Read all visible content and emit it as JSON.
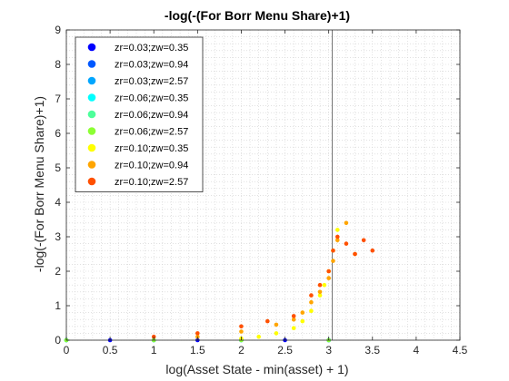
{
  "chart_data": {
    "type": "scatter",
    "title": "-log(-(For Borr Menu Share)+1)",
    "xlabel": "log(Asset State - min(asset) + 1)",
    "ylabel": "-log(-(For Borr Menu Share)+1)",
    "xlim": [
      0,
      4.5
    ],
    "ylim": [
      0,
      9
    ],
    "xticks": [
      "0",
      "0.5",
      "1",
      "1.5",
      "2",
      "2.5",
      "3",
      "3.5",
      "4",
      "4.5"
    ],
    "yticks": [
      "0",
      "1",
      "2",
      "3",
      "4",
      "5",
      "6",
      "7",
      "8",
      "9"
    ],
    "grid": "minor-dotted",
    "legend_location": "top-left",
    "reference_line_x": 3.04,
    "series": [
      {
        "name": "zr=0.03;zw=0.35",
        "color": "#0000ff",
        "points": [
          [
            0,
            0
          ],
          [
            0.5,
            0
          ],
          [
            1,
            0
          ],
          [
            1.5,
            0
          ],
          [
            2,
            0
          ],
          [
            2.5,
            0
          ],
          [
            3,
            0
          ]
        ]
      },
      {
        "name": "zr=0.03;zw=0.94",
        "color": "#0058ff",
        "points": [
          [
            0,
            0
          ],
          [
            1,
            0
          ],
          [
            2,
            0
          ],
          [
            3,
            0
          ]
        ]
      },
      {
        "name": "zr=0.03;zw=2.57",
        "color": "#00a6ff",
        "points": [
          [
            0,
            0
          ],
          [
            1,
            0
          ],
          [
            2,
            0
          ],
          [
            3,
            0
          ]
        ]
      },
      {
        "name": "zr=0.06;zw=0.35",
        "color": "#00ffff",
        "points": [
          [
            0,
            0
          ],
          [
            1,
            0
          ],
          [
            2,
            0
          ],
          [
            3,
            0
          ]
        ]
      },
      {
        "name": "zr=0.06;zw=0.94",
        "color": "#4dff9a",
        "points": [
          [
            0,
            0
          ],
          [
            1,
            0
          ],
          [
            2,
            0
          ],
          [
            3,
            0
          ]
        ]
      },
      {
        "name": "zr=0.06;zw=2.57",
        "color": "#8cff33",
        "points": [
          [
            0,
            0
          ],
          [
            1,
            0
          ],
          [
            2,
            0
          ],
          [
            3,
            0
          ]
        ]
      },
      {
        "name": "zr=0.10;zw=0.35",
        "color": "#ffff00",
        "points": [
          [
            2.0,
            0.05
          ],
          [
            2.2,
            0.1
          ],
          [
            2.4,
            0.2
          ],
          [
            2.6,
            0.35
          ],
          [
            2.7,
            0.55
          ],
          [
            2.8,
            0.85
          ],
          [
            2.9,
            1.3
          ],
          [
            2.95,
            1.6
          ],
          [
            3.0,
            2.0
          ],
          [
            3.05,
            2.6
          ],
          [
            3.1,
            3.2
          ]
        ]
      },
      {
        "name": "zr=0.10;zw=0.94",
        "color": "#ffa500",
        "points": [
          [
            1.5,
            0.1
          ],
          [
            2.0,
            0.25
          ],
          [
            2.4,
            0.45
          ],
          [
            2.6,
            0.6
          ],
          [
            2.7,
            0.8
          ],
          [
            2.8,
            1.1
          ],
          [
            2.9,
            1.4
          ],
          [
            3.0,
            1.8
          ],
          [
            3.05,
            2.3
          ],
          [
            3.1,
            2.9
          ],
          [
            3.2,
            3.4
          ],
          [
            3.3,
            2.5
          ]
        ]
      },
      {
        "name": "zr=0.10;zw=2.57",
        "color": "#ff5000",
        "points": [
          [
            1.0,
            0.1
          ],
          [
            1.5,
            0.2
          ],
          [
            2.0,
            0.4
          ],
          [
            2.3,
            0.55
          ],
          [
            2.6,
            0.7
          ],
          [
            2.8,
            1.3
          ],
          [
            2.9,
            1.6
          ],
          [
            3.0,
            2.0
          ],
          [
            3.05,
            2.6
          ],
          [
            3.1,
            3.0
          ],
          [
            3.2,
            2.8
          ],
          [
            3.3,
            2.5
          ],
          [
            3.4,
            2.9
          ],
          [
            3.5,
            2.6
          ]
        ]
      }
    ]
  }
}
